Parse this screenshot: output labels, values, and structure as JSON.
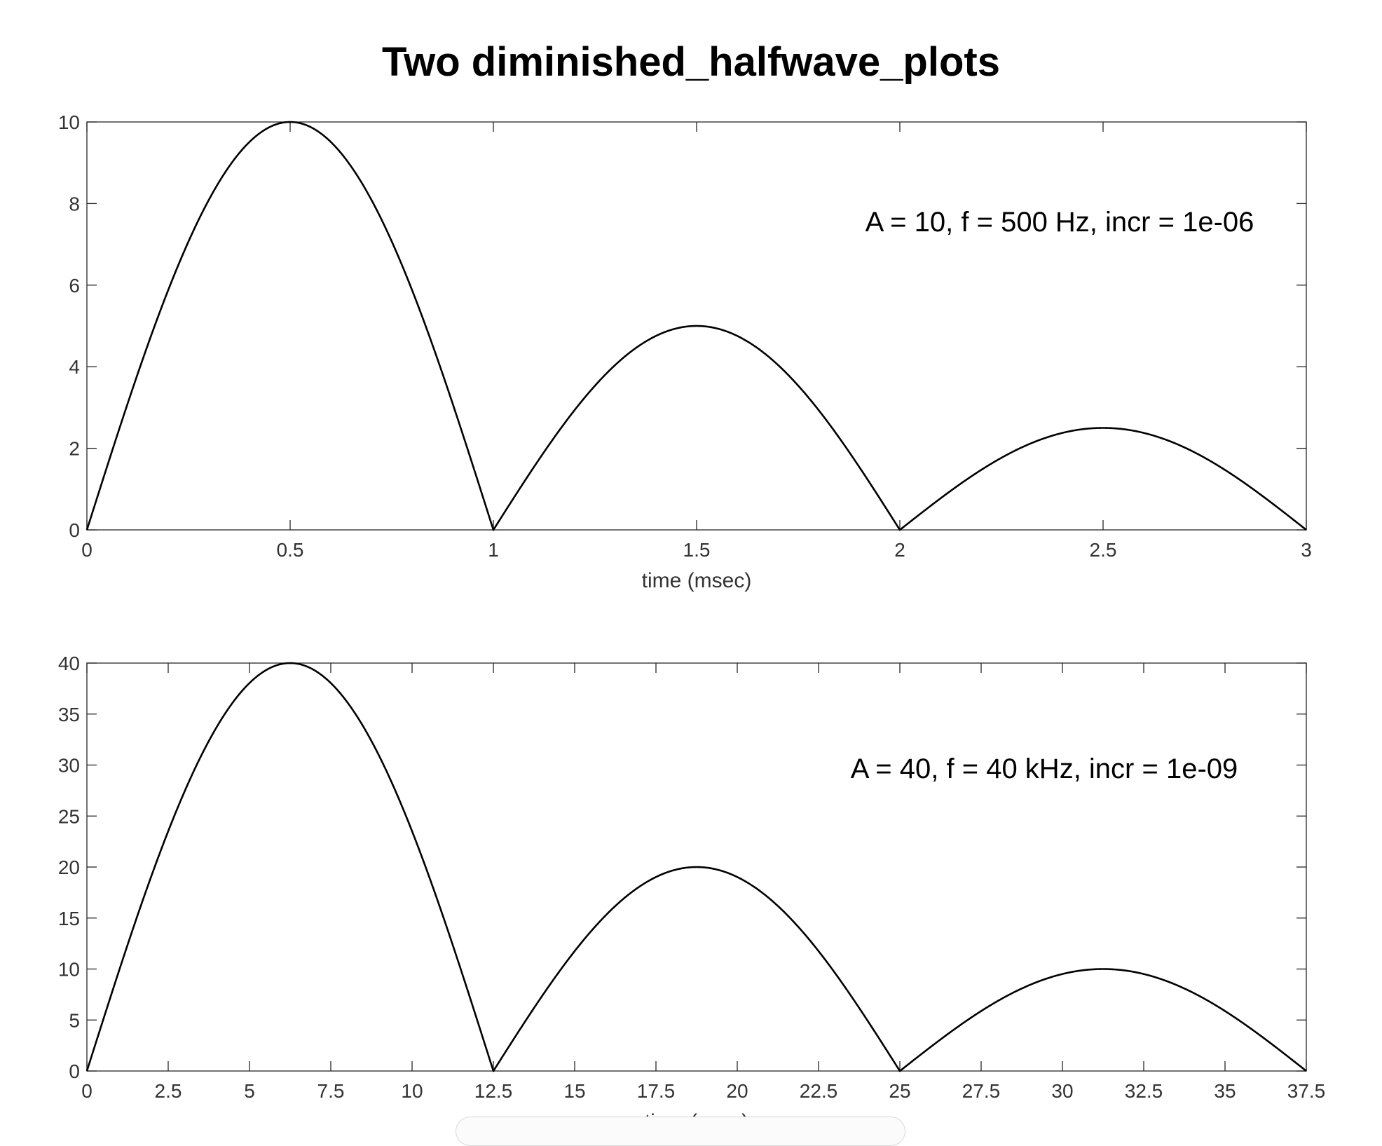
{
  "figure": {
    "title": "Two diminished_halfwave_plots"
  },
  "chart_data": [
    {
      "type": "line",
      "title": "",
      "xlabel": "time (msec)",
      "ylabel": "",
      "xlim": [
        0,
        3
      ],
      "ylim": [
        0,
        10
      ],
      "xticks": [
        0,
        0.5,
        1,
        1.5,
        2,
        2.5,
        3
      ],
      "xtick_labels": [
        "0",
        "0.5",
        "1",
        "1.5",
        "2",
        "2.5",
        "3"
      ],
      "yticks": [
        0,
        2,
        4,
        6,
        8,
        10
      ],
      "ytick_labels": [
        "0",
        "2",
        "4",
        "6",
        "8",
        "10"
      ],
      "annotation": "A = 10, f = 500 Hz, incr = 1e-06",
      "grid": false,
      "series": [
        {
          "color": "#000000",
          "x": [
            0,
            0.5,
            1,
            1.5,
            2,
            2.5,
            3
          ],
          "y": [
            0,
            10,
            0,
            5,
            0,
            2.5,
            0
          ],
          "curve": "halfwave-sine",
          "amplitude": 10,
          "half_period": 1,
          "decay_per_lobe": 0.5
        }
      ]
    },
    {
      "type": "line",
      "title": "",
      "xlabel": "time (usec)",
      "ylabel": "",
      "xlim": [
        0,
        37.5
      ],
      "ylim": [
        0,
        40
      ],
      "xticks": [
        0,
        2.5,
        5,
        7.5,
        10,
        12.5,
        15,
        17.5,
        20,
        22.5,
        25,
        27.5,
        30,
        32.5,
        35,
        37.5
      ],
      "xtick_labels": [
        "0",
        "2.5",
        "5",
        "7.5",
        "10",
        "12.5",
        "15",
        "17.5",
        "20",
        "22.5",
        "25",
        "27.5",
        "30",
        "32.5",
        "35",
        "37.5"
      ],
      "yticks": [
        0,
        5,
        10,
        15,
        20,
        25,
        30,
        35,
        40
      ],
      "ytick_labels": [
        "0",
        "5",
        "10",
        "15",
        "20",
        "25",
        "30",
        "35",
        "40"
      ],
      "annotation": "A = 40, f = 40 kHz, incr = 1e-09",
      "grid": false,
      "series": [
        {
          "color": "#000000",
          "x": [
            0,
            6.25,
            12.5,
            18.75,
            25,
            31.25,
            37.5
          ],
          "y": [
            0,
            40,
            0,
            20,
            0,
            10,
            0
          ],
          "curve": "halfwave-sine",
          "amplitude": 40,
          "half_period": 12.5,
          "decay_per_lobe": 0.5
        }
      ]
    }
  ]
}
